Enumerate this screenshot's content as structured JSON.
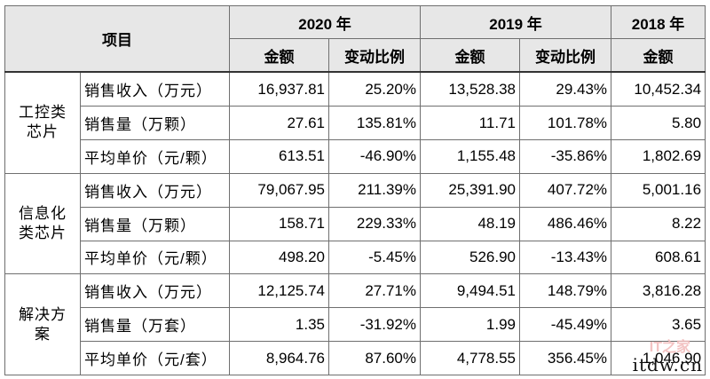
{
  "header": {
    "item_label": "项目",
    "years": [
      "2020 年",
      "2019 年",
      "2018 年"
    ],
    "amount_label": "金额",
    "change_label": "变动比例"
  },
  "groups": [
    {
      "name_lines": [
        "工控类",
        "芯片"
      ],
      "rows": [
        {
          "metric": "销售收入（万元）",
          "v2020": "16,937.81",
          "c2020": "25.20%",
          "v2019": "13,528.38",
          "c2019": "29.43%",
          "v2018": "10,452.34"
        },
        {
          "metric": "销售量（万颗）",
          "v2020": "27.61",
          "c2020": "135.81%",
          "v2019": "11.71",
          "c2019": "101.78%",
          "v2018": "5.80"
        },
        {
          "metric": "平均单价（元/颗）",
          "v2020": "613.51",
          "c2020": "-46.90%",
          "v2019": "1,155.48",
          "c2019": "-35.86%",
          "v2018": "1,802.69"
        }
      ]
    },
    {
      "name_lines": [
        "信息化",
        "类芯片"
      ],
      "rows": [
        {
          "metric": "销售收入（万元）",
          "v2020": "79,067.95",
          "c2020": "211.39%",
          "v2019": "25,391.90",
          "c2019": "407.72%",
          "v2018": "5,001.16"
        },
        {
          "metric": "销售量（万颗）",
          "v2020": "158.71",
          "c2020": "229.33%",
          "v2019": "48.19",
          "c2019": "486.46%",
          "v2018": "8.22"
        },
        {
          "metric": "平均单价（元/颗）",
          "v2020": "498.20",
          "c2020": "-5.45%",
          "v2019": "526.90",
          "c2019": "-13.43%",
          "v2018": "608.61"
        }
      ]
    },
    {
      "name_lines": [
        "解决方",
        "案"
      ],
      "rows": [
        {
          "metric": "销售收入（万元）",
          "v2020": "12,125.74",
          "c2020": "27.71%",
          "v2019": "9,494.51",
          "c2019": "148.79%",
          "v2018": "3,816.28"
        },
        {
          "metric": "销售量（万套）",
          "v2020": "1.35",
          "c2020": "-31.92%",
          "v2019": "1.99",
          "c2019": "-45.49%",
          "v2018": "3.65"
        },
        {
          "metric": "平均单价（元/套）",
          "v2020": "8,964.76",
          "c2020": "87.60%",
          "v2019": "4,778.55",
          "c2019": "356.45%",
          "v2018": "1,046.90"
        }
      ]
    }
  ],
  "watermark": {
    "text": "itdw.cn",
    "badge": "IT之家"
  }
}
